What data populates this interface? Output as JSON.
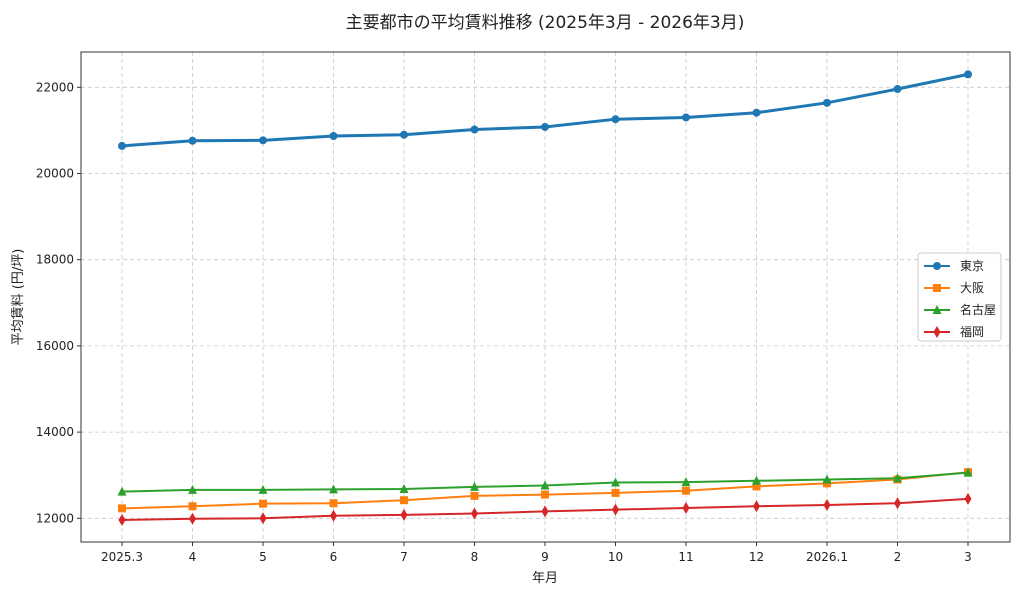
{
  "chart_data": {
    "type": "line",
    "title": "主要都市の平均賃料推移 (2025年3月 - 2026年3月)",
    "xlabel": "年月",
    "ylabel": "平均賃料 (円/坪)",
    "categories": [
      "2025.3",
      "4",
      "5",
      "6",
      "7",
      "8",
      "9",
      "10",
      "11",
      "12",
      "2026.1",
      "2",
      "3"
    ],
    "ylim": [
      11450,
      22820
    ],
    "yticks": [
      12000,
      14000,
      16000,
      18000,
      20000,
      22000
    ],
    "grid": true,
    "legend_position": "center-right",
    "series": [
      {
        "name": "東京",
        "color": "#1f77b4",
        "marker": "circle",
        "values": [
          20640,
          20760,
          20770,
          20870,
          20900,
          21020,
          21080,
          21260,
          21300,
          21410,
          21640,
          21960,
          22300
        ]
      },
      {
        "name": "大阪",
        "color": "#ff7f0e",
        "marker": "square",
        "values": [
          12230,
          12280,
          12340,
          12350,
          12420,
          12520,
          12550,
          12590,
          12640,
          12740,
          12810,
          12900,
          13070
        ]
      },
      {
        "name": "名古屋",
        "color": "#2ca02c",
        "marker": "triangle",
        "values": [
          12620,
          12660,
          12660,
          12670,
          12680,
          12730,
          12760,
          12830,
          12840,
          12870,
          12900,
          12930,
          13060
        ]
      },
      {
        "name": "福岡",
        "color": "#d62728",
        "marker": "diamond",
        "values": [
          11960,
          11990,
          12000,
          12060,
          12080,
          12110,
          12160,
          12200,
          12240,
          12280,
          12310,
          12350,
          12450
        ]
      }
    ]
  }
}
